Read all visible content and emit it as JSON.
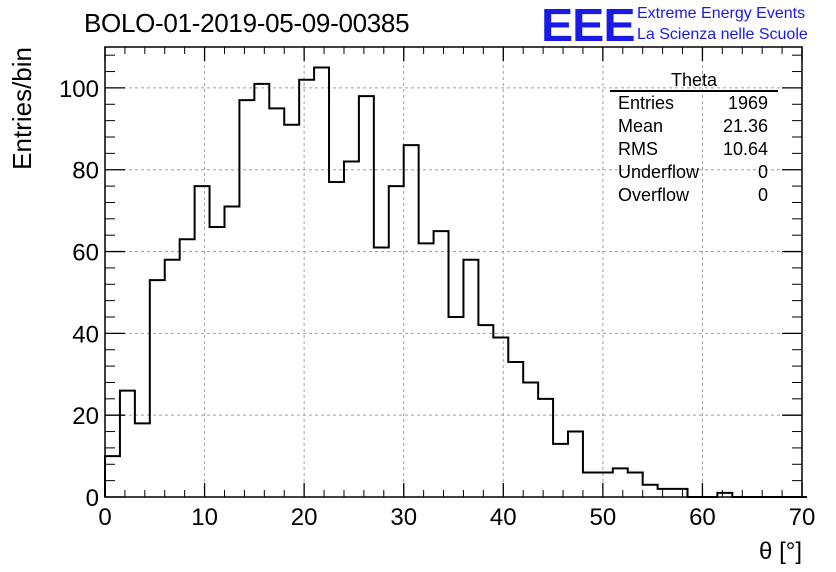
{
  "header": {
    "title": "BOLO-01-2019-05-09-00385",
    "logo": "EEE",
    "logo_line1": "Extreme Energy Events",
    "logo_line2": "La Scienza nelle Scuole"
  },
  "stats": {
    "name": "Theta",
    "rows": [
      {
        "label": "Entries",
        "value": "1969"
      },
      {
        "label": "Mean",
        "value": "21.36"
      },
      {
        "label": "RMS",
        "value": "10.64"
      },
      {
        "label": "Underflow",
        "value": "0"
      },
      {
        "label": "Overflow",
        "value": "0"
      }
    ]
  },
  "colors": {
    "line": "#000000",
    "grid": "#999999",
    "logo": "#1a1ae6"
  },
  "chart_data": {
    "type": "histogram",
    "title": "BOLO-01-2019-05-09-00385",
    "xlabel": "θ [°]",
    "ylabel": "Entries/bin",
    "xlim": [
      0,
      70
    ],
    "ylim": [
      0,
      110
    ],
    "x_ticks": [
      0,
      10,
      20,
      30,
      40,
      50,
      60,
      70
    ],
    "y_ticks": [
      0,
      20,
      40,
      60,
      80,
      100
    ],
    "grid": true,
    "bin_width": 1.5,
    "bin_edges_start": 0,
    "values": [
      10,
      26,
      18,
      53,
      58,
      63,
      76,
      66,
      71,
      97,
      101,
      95,
      91,
      102,
      105,
      77,
      82,
      98,
      61,
      76,
      86,
      62,
      65,
      44,
      58,
      42,
      39,
      33,
      28,
      24,
      13,
      16,
      6,
      6,
      7,
      6,
      3,
      2,
      2,
      0,
      0,
      1,
      0,
      0,
      0,
      0,
      0
    ]
  }
}
